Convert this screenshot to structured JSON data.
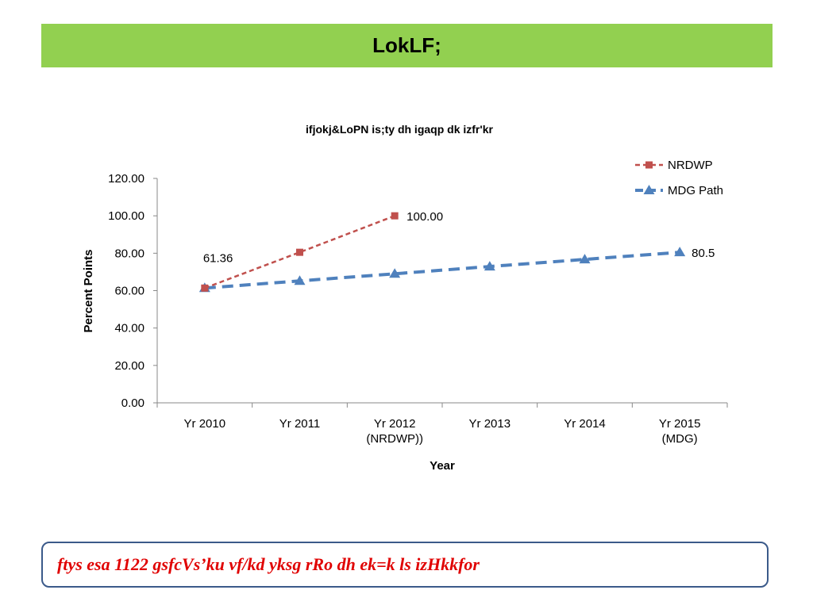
{
  "header": {
    "title": "LokLF;"
  },
  "colors": {
    "header_bg": "#92d050",
    "nrdwp": "#c0504d",
    "mdg": "#4f81bd",
    "note_text": "#e00000",
    "note_border": "#3b5a8a"
  },
  "chart_data": {
    "type": "line",
    "title": "ifjokj&LoPN is;ty dh igaqp dk izfr'kr",
    "xlabel": "Year",
    "ylabel": "Percent Points",
    "categories": [
      "Yr 2010",
      "Yr 2011",
      "Yr 2012\n(NRDWP))",
      "Yr 2013",
      "Yr 2014",
      "Yr 2015\n(MDG)"
    ],
    "ylim": [
      0,
      120
    ],
    "yticks": [
      "0.00",
      "20.00",
      "40.00",
      "60.00",
      "80.00",
      "100.00",
      "120.00"
    ],
    "series": [
      {
        "name": "NRDWP",
        "values": [
          61.36,
          80.5,
          100,
          null,
          null,
          null
        ],
        "marker": "square",
        "color": "#c0504d"
      },
      {
        "name": "MDG Path",
        "values": [
          61.36,
          65.2,
          69.0,
          72.9,
          76.7,
          80.5
        ],
        "marker": "triangle",
        "color": "#4f81bd"
      }
    ],
    "data_labels": [
      {
        "text": "61.36",
        "category_index": 0,
        "value": 61.36
      },
      {
        "text": "100.00",
        "category_index": 2,
        "value": 100
      },
      {
        "text": "80.5",
        "category_index": 5,
        "value": 80.5
      }
    ],
    "grid": false,
    "legend": "top-right"
  },
  "note": {
    "text": "ftys esa 1122 gsfcVs’ku vf/kd yksg rRo dh ek=k ls izHkkfor"
  }
}
